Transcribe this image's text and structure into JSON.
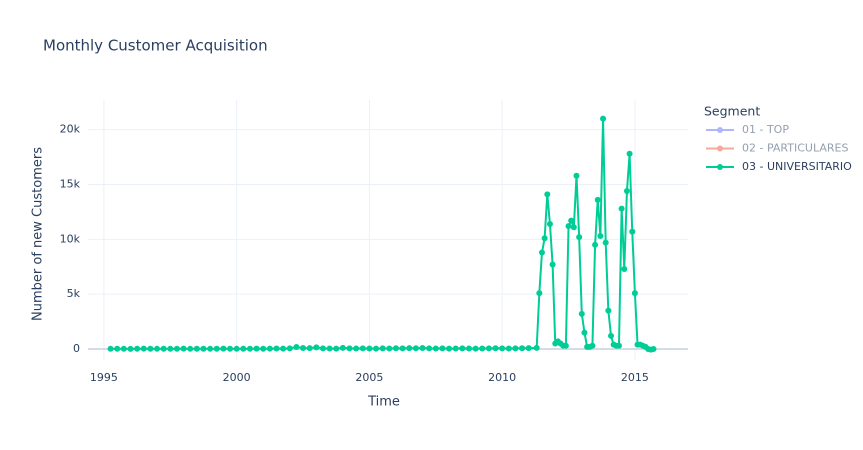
{
  "chart_data": {
    "type": "line",
    "title": "Monthly Customer Acquisition",
    "x_label": "Time",
    "y_label": "Number of new Customers",
    "legend_title": "Segment",
    "legend_position": "right",
    "grid": true,
    "xlim": [
      1994.4,
      2017.0
    ],
    "ylim": [
      -1000,
      22700
    ],
    "xticks": [
      1995,
      2000,
      2005,
      2010,
      2015
    ],
    "yticks": [
      0,
      {
        "value": 5000,
        "label": "5k"
      },
      {
        "value": 10000,
        "label": "10k"
      },
      {
        "value": 15000,
        "label": "15k"
      },
      {
        "value": 20000,
        "label": "20k"
      }
    ],
    "x": [
      1995.25,
      1995.5,
      1995.75,
      1996,
      1996.25,
      1996.5,
      1996.75,
      1997,
      1997.25,
      1997.5,
      1997.75,
      1998,
      1998.25,
      1998.5,
      1998.75,
      1999,
      1999.25,
      1999.5,
      1999.75,
      2000,
      2000.25,
      2000.5,
      2000.75,
      2001,
      2001.25,
      2001.5,
      2001.75,
      2002,
      2002.25,
      2002.5,
      2002.75,
      2003,
      2003.25,
      2003.5,
      2003.75,
      2004,
      2004.25,
      2004.5,
      2004.75,
      2005,
      2005.25,
      2005.5,
      2005.75,
      2006,
      2006.25,
      2006.5,
      2006.75,
      2007,
      2007.25,
      2007.5,
      2007.75,
      2008,
      2008.25,
      2008.5,
      2008.75,
      2009,
      2009.25,
      2009.5,
      2009.75,
      2010,
      2010.25,
      2010.5,
      2010.75,
      2011,
      2011.3,
      2011.4,
      2011.5,
      2011.6,
      2011.7,
      2011.8,
      2011.9,
      2012,
      2012.1,
      2012.2,
      2012.3,
      2012.4,
      2012.5,
      2012.6,
      2012.7,
      2012.8,
      2012.9,
      2013,
      2013.1,
      2013.2,
      2013.3,
      2013.4,
      2013.5,
      2013.6,
      2013.7,
      2013.8,
      2013.9,
      2014,
      2014.1,
      2014.2,
      2014.3,
      2014.4,
      2014.5,
      2014.6,
      2014.7,
      2014.8,
      2014.9,
      2015,
      2015.1,
      2015.2,
      2015.3,
      2015.4,
      2015.5,
      2015.6,
      2015.7
    ],
    "series": [
      {
        "name": "01 - TOP",
        "color": "#636efa",
        "visible": "legendonly"
      },
      {
        "name": "02 - PARTICULARES",
        "color": "#EF553B",
        "visible": "legendonly"
      },
      {
        "name": "03 - UNIVERSITARIO",
        "color": "#00cc96",
        "visible": true,
        "values": [
          20,
          30,
          20,
          10,
          30,
          40,
          30,
          20,
          30,
          20,
          30,
          40,
          20,
          30,
          30,
          20,
          30,
          40,
          30,
          20,
          30,
          30,
          40,
          30,
          40,
          50,
          40,
          60,
          180,
          90,
          80,
          150,
          60,
          50,
          40,
          100,
          60,
          50,
          60,
          50,
          40,
          60,
          50,
          70,
          60,
          80,
          70,
          90,
          60,
          50,
          60,
          40,
          50,
          60,
          50,
          40,
          50,
          60,
          70,
          60,
          50,
          60,
          70,
          80,
          100,
          5100,
          8800,
          10100,
          14100,
          11400,
          7700,
          500,
          700,
          500,
          300,
          300,
          11200,
          11700,
          11100,
          15800,
          10200,
          3200,
          1500,
          200,
          200,
          300,
          9500,
          13600,
          10300,
          21000,
          9700,
          3500,
          1200,
          400,
          300,
          300,
          12800,
          7300,
          14400,
          17800,
          10700,
          5100,
          400,
          400,
          300,
          200,
          0,
          -50,
          0
        ]
      }
    ]
  }
}
